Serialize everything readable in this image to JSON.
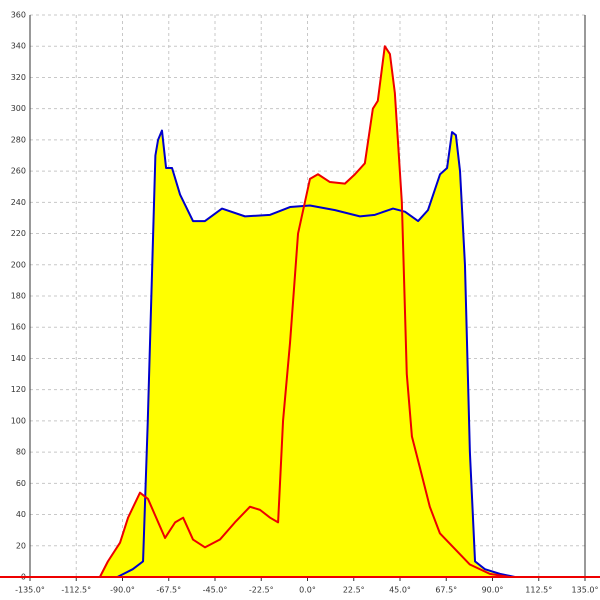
{
  "chart_data": {
    "type": "area",
    "xlim": [
      -135,
      135
    ],
    "ylim": [
      0,
      360
    ],
    "xticks": [
      {
        "value": -135,
        "label": "-135.0°"
      },
      {
        "value": -112.5,
        "label": "-112.5°"
      },
      {
        "value": -90,
        "label": "-90.0°"
      },
      {
        "value": -67.5,
        "label": "-67.5°"
      },
      {
        "value": -45,
        "label": "-45.0°"
      },
      {
        "value": -22.5,
        "label": "-22.5°"
      },
      {
        "value": 0,
        "label": "0.0°"
      },
      {
        "value": 22.5,
        "label": "22.5°"
      },
      {
        "value": 45,
        "label": "45.0°"
      },
      {
        "value": 67.5,
        "label": "67.5°"
      },
      {
        "value": 90,
        "label": "90.0°"
      },
      {
        "value": 112.5,
        "label": "112.5°"
      },
      {
        "value": 135,
        "label": "135.0°"
      }
    ],
    "yticks": [
      0,
      20,
      40,
      60,
      80,
      100,
      120,
      140,
      160,
      180,
      200,
      220,
      240,
      260,
      280,
      300,
      320,
      340,
      360
    ],
    "grid": true,
    "fill": "#ffff00",
    "series": [
      {
        "color": "#0000cc",
        "x": [
          -92.5,
          -85,
          -80,
          -77.7,
          -74,
          -72.7,
          -70.8,
          -68.8,
          -65.9,
          -62,
          -55.7,
          -49.9,
          -41.6,
          -30.4,
          -18.2,
          -8.5,
          1.2,
          13.4,
          25.5,
          32.8,
          41.6,
          47.4,
          53.8,
          58.6,
          64.5,
          67.9,
          70.3,
          72.2,
          74.2,
          76.6,
          79,
          81.5,
          86.3,
          93.6,
          100.9
        ],
        "values": [
          0,
          5,
          10,
          100,
          270,
          280,
          286,
          262,
          262,
          245,
          228,
          228,
          236,
          231,
          232,
          237,
          238,
          235,
          231,
          232,
          236,
          234,
          228,
          235,
          258,
          262,
          285,
          283,
          260,
          200,
          80,
          10,
          5,
          2,
          0
        ]
      },
      {
        "color": "#ee0000",
        "x": [
          -101,
          -97.1,
          -91.2,
          -87.3,
          -81.5,
          -77.6,
          -69.3,
          -64.4,
          -60.5,
          -55.7,
          -49.9,
          -42.6,
          -35.3,
          -28,
          -23.1,
          -18.2,
          -14.3,
          -11.9,
          -8.5,
          -4.6,
          1.2,
          5.1,
          10.9,
          18.2,
          23.1,
          27.9,
          31.8,
          34.2,
          37.6,
          40.1,
          42.5,
          45.9,
          48.3,
          50.8,
          54.7,
          59.5,
          64.4,
          71.7,
          79,
          88.7,
          98.4
        ],
        "values": [
          0,
          10,
          22,
          38,
          54,
          50,
          25,
          35,
          38,
          24,
          19,
          24,
          35,
          45,
          43,
          38,
          35,
          100,
          150,
          220,
          255,
          258,
          253,
          252,
          258,
          265,
          300,
          305,
          340,
          335,
          310,
          240,
          130,
          90,
          70,
          45,
          28,
          18,
          8,
          2,
          0
        ]
      }
    ]
  }
}
